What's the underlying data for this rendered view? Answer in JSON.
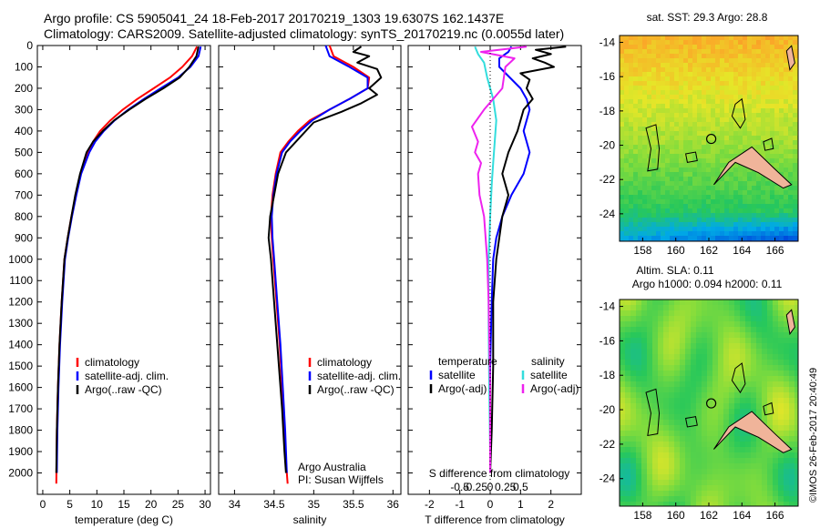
{
  "header": {
    "line1": "Argo profile: CS 5905041_24 18-Feb-2017 20170219_1303 19.6307S 162.1437E",
    "line2": "Climatology: CARS2009. Satellite-adjusted climatology: synTS_20170219.nc (0.0055d later)"
  },
  "credit": "©IMOS 26-Feb-2017 20:40:49",
  "colors": {
    "climatology": "#ff0000",
    "satellite": "#0000ff",
    "argo": "#000000",
    "sal_satellite": "#33dddd",
    "sal_argo": "#ee22ee"
  },
  "chart_data": [
    {
      "id": "temperature",
      "type": "line",
      "xlabel": "temperature (deg C)",
      "ylabel": "",
      "xlim": [
        -1,
        31
      ],
      "ylim": [
        2100,
        0
      ],
      "xticks": [
        "0",
        "5",
        "10",
        "15",
        "20",
        "25",
        "30"
      ],
      "xtick_values": [
        0,
        5,
        10,
        15,
        20,
        25,
        30
      ],
      "yticks": [
        "0",
        "100",
        "200",
        "300",
        "400",
        "500",
        "600",
        "700",
        "800",
        "900",
        "1000",
        "1100",
        "1200",
        "1300",
        "1400",
        "1500",
        "1600",
        "1700",
        "1800",
        "1900",
        "2000"
      ],
      "ytick_values": [
        0,
        100,
        200,
        300,
        400,
        500,
        600,
        700,
        800,
        900,
        1000,
        1100,
        1200,
        1300,
        1400,
        1500,
        1600,
        1700,
        1800,
        1900,
        2000
      ],
      "legend": [
        "climatology",
        "satellite-adj. clim.",
        "Argo(..raw -QC)"
      ],
      "series": [
        {
          "name": "climatology",
          "color": "#ff0000",
          "x": [
            28.5,
            27.6,
            25.8,
            23.5,
            20.5,
            17.5,
            14.8,
            12.5,
            10.6,
            9.3,
            8.4,
            7.0,
            6.1,
            5.3,
            4.6,
            4.0,
            3.5,
            3.1,
            2.8,
            2.6,
            2.5
          ],
          "y": [
            5,
            50,
            100,
            150,
            200,
            250,
            300,
            350,
            400,
            450,
            500,
            600,
            700,
            800,
            900,
            1000,
            1200,
            1400,
            1600,
            1800,
            2050
          ]
        },
        {
          "name": "satellite-adj. clim.",
          "color": "#0000ff",
          "x": [
            29.2,
            28.8,
            27.3,
            25.0,
            21.8,
            18.7,
            15.8,
            13.3,
            11.3,
            9.7,
            8.6,
            7.1,
            6.2,
            5.4,
            4.7,
            4.1,
            3.6,
            3.2,
            2.9,
            2.7,
            2.6
          ],
          "y": [
            5,
            50,
            100,
            150,
            200,
            250,
            300,
            350,
            400,
            450,
            500,
            600,
            700,
            800,
            900,
            1000,
            1200,
            1400,
            1600,
            1800,
            2000
          ]
        },
        {
          "name": "Argo(..raw -QC)",
          "color": "#000000",
          "x": [
            28.8,
            28.4,
            27.1,
            25.3,
            22.3,
            19.0,
            16.0,
            13.2,
            11.1,
            9.3,
            8.1,
            6.9,
            6.0,
            5.3,
            4.6,
            4.0,
            3.5,
            3.1,
            2.8,
            2.6,
            2.5
          ],
          "y": [
            5,
            50,
            100,
            150,
            200,
            250,
            300,
            350,
            400,
            450,
            500,
            600,
            700,
            800,
            900,
            1000,
            1200,
            1400,
            1600,
            1800,
            2000
          ]
        }
      ]
    },
    {
      "id": "salinity",
      "type": "line",
      "xlabel": "salinity",
      "ylabel": "",
      "xlim": [
        33.8,
        36.1
      ],
      "ylim": [
        2100,
        0
      ],
      "xticks": [
        "34",
        "34.5",
        "35",
        "35.5",
        "36"
      ],
      "xtick_values": [
        34,
        34.5,
        35,
        35.5,
        36
      ],
      "legend": [
        "climatology",
        "satellite-adj. clim.",
        "Argo(..raw -QC)"
      ],
      "annotation": [
        "Argo Australia",
        "PI: Susan Wijffels"
      ],
      "series": [
        {
          "name": "climatology",
          "color": "#ff0000",
          "x": [
            35.2,
            35.25,
            35.5,
            35.7,
            35.68,
            35.45,
            35.2,
            34.95,
            34.8,
            34.68,
            34.58,
            34.52,
            34.48,
            34.46,
            34.47,
            34.49,
            34.53,
            34.57,
            34.6,
            34.63,
            34.65,
            34.67
          ],
          "y": [
            0,
            50,
            100,
            150,
            200,
            250,
            300,
            350,
            400,
            450,
            500,
            600,
            700,
            800,
            900,
            1000,
            1200,
            1400,
            1600,
            1800,
            1950,
            2050
          ]
        },
        {
          "name": "satellite-adj. clim.",
          "color": "#0000ff",
          "x": [
            35.15,
            35.2,
            35.45,
            35.68,
            35.68,
            35.45,
            35.2,
            34.98,
            34.83,
            34.7,
            34.6,
            34.53,
            34.49,
            34.47,
            34.48,
            34.5,
            34.54,
            34.58,
            34.61,
            34.64,
            34.66
          ],
          "y": [
            0,
            50,
            100,
            150,
            200,
            250,
            300,
            350,
            400,
            450,
            500,
            600,
            700,
            800,
            900,
            1000,
            1200,
            1400,
            1600,
            1800,
            2000
          ]
        },
        {
          "name": "Argo(..raw -QC)",
          "color": "#000000",
          "x": [
            35.6,
            35.5,
            35.7,
            35.55,
            35.8,
            35.85,
            35.7,
            35.8,
            35.6,
            35.35,
            35.0,
            34.85,
            34.65,
            34.55,
            34.5,
            34.45,
            34.44,
            34.43,
            34.46,
            34.48,
            34.52,
            34.56,
            34.6,
            34.63,
            34.65
          ],
          "y": [
            5,
            30,
            50,
            80,
            110,
            150,
            200,
            230,
            270,
            310,
            360,
            420,
            500,
            600,
            700,
            800,
            850,
            900,
            1000,
            1100,
            1300,
            1500,
            1700,
            1900,
            2000
          ]
        }
      ]
    },
    {
      "id": "difference",
      "type": "line",
      "xlabel": "T difference from climatology",
      "xlabel_top": "S difference from climatology",
      "xlim": [
        -2.7,
        3.0
      ],
      "ylim": [
        2100,
        0
      ],
      "xticks": [
        "-2",
        "-1",
        "0",
        "1",
        "2"
      ],
      "xtick_values": [
        -2,
        -1,
        0,
        1,
        2
      ],
      "s_xticks": [
        "-0.5",
        "-0.25",
        "0",
        "0.25",
        "0.5"
      ],
      "s_xtick_values": [
        -1,
        -0.5,
        0,
        0.5,
        1
      ],
      "legend_t_title": "temperature",
      "legend_t": [
        "satellite",
        "Argo(-adj)"
      ],
      "legend_s_title": "salinity",
      "legend_s": [
        "satellite",
        "Argo(-adj)"
      ],
      "series": [
        {
          "name": "satellite",
          "color": "#0000ff",
          "group": "temperature",
          "x": [
            0.7,
            0.6,
            0.3,
            0.3,
            1.0,
            1.2,
            1.3,
            1.2,
            1.1,
            1.2,
            1.3,
            1.1,
            0.7,
            0.4,
            0.2,
            0.1,
            0.05,
            0.0,
            0.0,
            0.0
          ],
          "y": [
            5,
            30,
            60,
            100,
            200,
            250,
            300,
            350,
            400,
            450,
            500,
            600,
            700,
            800,
            900,
            1000,
            1200,
            1500,
            1800,
            2000
          ]
        },
        {
          "name": "Argo(-adj)",
          "color": "#000000",
          "group": "temperature",
          "x": [
            2.5,
            1.5,
            2.0,
            1.4,
            1.8,
            2.1,
            1.0,
            1.3,
            1.2,
            1.4,
            1.1,
            0.9,
            0.6,
            0.4,
            0.6,
            0.4,
            0.3,
            0.2,
            0.1,
            0.1,
            0.05,
            0.0
          ],
          "y": [
            5,
            20,
            40,
            60,
            80,
            100,
            130,
            160,
            200,
            250,
            300,
            400,
            500,
            600,
            700,
            800,
            900,
            1000,
            1200,
            1500,
            1800,
            2000
          ]
        },
        {
          "name": "satellite",
          "color": "#33dddd",
          "group": "salinity",
          "x": [
            -0.5,
            -0.4,
            -0.2,
            -0.1,
            0.1,
            0.2,
            0.15,
            0.1,
            0.05,
            0.0,
            -0.05,
            -0.05,
            -0.03,
            0.0,
            0.0
          ],
          "y": [
            5,
            40,
            80,
            150,
            250,
            350,
            450,
            550,
            650,
            800,
            1000,
            1300,
            1600,
            1900,
            2000
          ]
        },
        {
          "name": "Argo(-adj)",
          "color": "#ee22ee",
          "group": "salinity",
          "x": [
            1.2,
            -0.3,
            0.8,
            0.5,
            0.4,
            -0.2,
            -0.6,
            -0.4,
            -0.5,
            -0.3,
            -0.4,
            -0.35,
            -0.2,
            -0.15,
            -0.1,
            -0.05,
            0.0,
            0.0
          ],
          "y": [
            5,
            30,
            60,
            100,
            200,
            300,
            380,
            450,
            500,
            550,
            600,
            700,
            800,
            900,
            1000,
            1200,
            1600,
            2000
          ]
        }
      ]
    },
    {
      "id": "sst_map",
      "type": "heatmap",
      "title": "sat. SST: 29.3 Argo: 28.8",
      "xticks": [
        "158",
        "160",
        "162",
        "164",
        "166"
      ],
      "xtick_values": [
        158,
        160,
        162,
        164,
        166
      ],
      "yticks": [
        "-14",
        "-16",
        "-18",
        "-20",
        "-22",
        "-24"
      ],
      "ytick_values": [
        -14,
        -16,
        -18,
        -20,
        -22,
        -24
      ],
      "xlim": [
        156.6,
        167.4
      ],
      "ylim": [
        -25.6,
        -13.6
      ],
      "argo_position": {
        "lon": 162.1437,
        "lat": -19.6307
      }
    },
    {
      "id": "sla_map",
      "type": "heatmap",
      "title": "Altim. SLA: 0.11",
      "subtitle": "Argo h1000: 0.094 h2000: 0.11",
      "xticks": [
        "158",
        "160",
        "162",
        "164",
        "166"
      ],
      "xtick_values": [
        158,
        160,
        162,
        164,
        166
      ],
      "yticks": [
        "-14",
        "-16",
        "-18",
        "-20",
        "-22",
        "-24"
      ],
      "ytick_values": [
        -14,
        -16,
        -18,
        -20,
        -22,
        -24
      ],
      "xlim": [
        156.6,
        167.4
      ],
      "ylim": [
        -25.6,
        -13.6
      ],
      "argo_position": {
        "lon": 162.1437,
        "lat": -19.6307
      }
    }
  ]
}
